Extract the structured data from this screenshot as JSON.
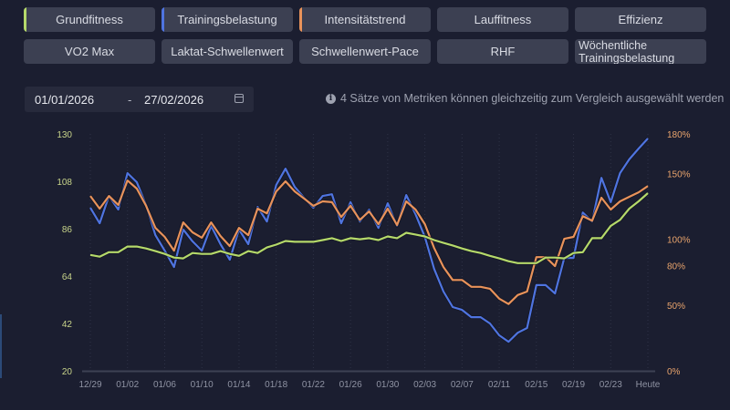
{
  "metrics": [
    {
      "label": "Grundfitness",
      "color": "#b5d96a",
      "selected": true
    },
    {
      "label": "Trainingsbelastung",
      "color": "#4f74e0",
      "selected": true
    },
    {
      "label": "Intensitätstrend",
      "color": "#e8925a",
      "selected": true
    },
    {
      "label": "Lauffitness",
      "color": null,
      "selected": false
    },
    {
      "label": "Effizienz",
      "color": null,
      "selected": false
    },
    {
      "label": "VO2 Max",
      "color": null,
      "selected": false
    },
    {
      "label": "Laktat-Schwellenwert",
      "color": null,
      "selected": false
    },
    {
      "label": "Schwellenwert-Pace",
      "color": null,
      "selected": false
    },
    {
      "label": "RHF",
      "color": null,
      "selected": false
    },
    {
      "label": "Wöchentliche Trainingsbelastung",
      "color": null,
      "selected": false
    }
  ],
  "date_range": {
    "from": "01/01/2026",
    "separator": "-",
    "to": "27/02/2026"
  },
  "info_text": "4 Sätze von Metriken können gleichzeitig zum Vergleich ausgewählt werden",
  "chart_data": {
    "type": "line",
    "title": "",
    "xlabel": "",
    "ylabel": "",
    "ylim": [
      20,
      130
    ],
    "y_ticks": [
      "130",
      "108",
      "86",
      "64",
      "42",
      "20"
    ],
    "y2lim": [
      0,
      180
    ],
    "y2_ticks": [
      "180%",
      "150%",
      "100%",
      "80%",
      "50%",
      "0%"
    ],
    "y2_tick_values": [
      180,
      150,
      100,
      80,
      50,
      0
    ],
    "x_tick_labels": [
      "12/29",
      "01/02",
      "01/06",
      "01/10",
      "01/14",
      "01/18",
      "01/22",
      "01/26",
      "01/30",
      "02/03",
      "02/07",
      "02/11",
      "02/15",
      "02/19",
      "02/23",
      "Heute"
    ],
    "x_tick_days": [
      0,
      4,
      8,
      12,
      16,
      20,
      24,
      28,
      32,
      36,
      40,
      44,
      48,
      52,
      56,
      60
    ],
    "grid": "vertical-dotted",
    "legend": "none",
    "series": [
      {
        "name": "Trainingsbelastung",
        "color": "#4f74e0",
        "values": [
          95.7,
          88.5,
          101.2,
          94.9,
          111.8,
          107.6,
          97.0,
          83.0,
          75.8,
          68.2,
          85.6,
          80.1,
          75.8,
          87.3,
          78.8,
          71.6,
          85.6,
          78.8,
          96.1,
          89.3,
          106.3,
          113.9,
          105.4,
          100.4,
          95.7,
          101.2,
          102.0,
          88.5,
          98.3,
          89.3,
          94.9,
          86.4,
          97.8,
          87.3,
          101.6,
          92.7,
          82.2,
          67.3,
          56.8,
          49.6,
          48.3,
          44.9,
          44.9,
          42.0,
          36.5,
          33.5,
          37.7,
          39.9,
          59.8,
          59.8,
          55.9,
          72.4,
          72.4,
          93.5,
          89.3,
          109.6,
          98.3,
          111.8,
          118.2,
          123.2,
          127.9
        ]
      },
      {
        "name": "Intensitätstrend",
        "color": "#e8925a",
        "values": [
          101.2,
          95.3,
          101.2,
          97.0,
          108.4,
          104.6,
          96.6,
          86.4,
          82.2,
          75.8,
          88.9,
          84.3,
          81.8,
          88.9,
          82.6,
          77.9,
          86.4,
          83.0,
          95.3,
          93.1,
          103.3,
          108.0,
          103.3,
          100.0,
          96.6,
          98.7,
          98.3,
          91.4,
          96.6,
          90.1,
          94.0,
          88.1,
          95.3,
          87.7,
          98.7,
          94.9,
          88.1,
          77.0,
          68.2,
          62.2,
          62.2,
          59.0,
          59.0,
          58.1,
          53.5,
          51.0,
          55.2,
          56.8,
          72.8,
          72.8,
          68.6,
          81.3,
          82.2,
          91.8,
          89.7,
          100.4,
          94.9,
          98.7,
          100.8,
          102.9,
          105.8
        ]
      },
      {
        "name": "Grundfitness",
        "color": "#b5d96a",
        "values": [
          73.8,
          73.0,
          75.1,
          75.1,
          77.7,
          77.7,
          76.8,
          75.6,
          74.3,
          72.6,
          72.2,
          74.7,
          74.3,
          74.3,
          75.6,
          74.3,
          73.4,
          75.6,
          74.7,
          77.3,
          78.6,
          80.3,
          79.9,
          79.9,
          79.9,
          80.7,
          81.6,
          80.3,
          81.6,
          81.1,
          81.6,
          80.7,
          82.4,
          81.6,
          84.1,
          83.3,
          82.4,
          80.7,
          79.4,
          78.2,
          76.8,
          75.6,
          74.7,
          73.4,
          72.2,
          70.9,
          70.0,
          70.0,
          70.0,
          72.6,
          72.6,
          72.2,
          74.7,
          75.1,
          81.6,
          81.6,
          87.3,
          90.1,
          95.3,
          98.7,
          102.5
        ]
      }
    ]
  }
}
